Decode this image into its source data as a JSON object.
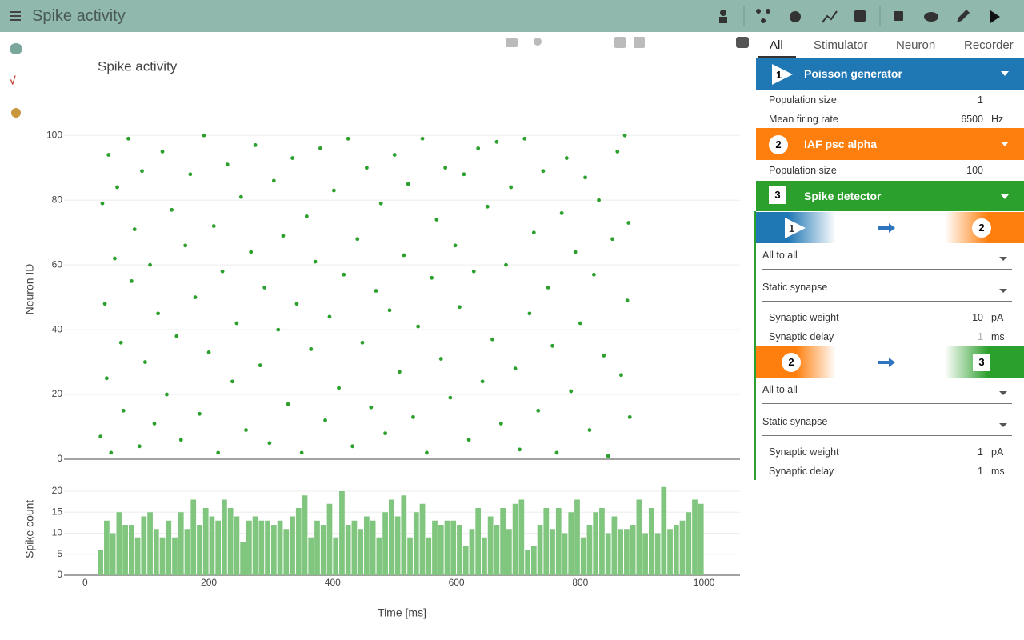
{
  "header": {
    "title": "Spike activity"
  },
  "tabs": [
    "All",
    "Stimulator",
    "Neuron",
    "Recorder"
  ],
  "nodes": [
    {
      "id": 1,
      "label": "Poisson generator",
      "params": [
        {
          "label": "Population size",
          "value": 1
        },
        {
          "label": "Mean firing rate",
          "value": 6500,
          "unit": "Hz"
        }
      ]
    },
    {
      "id": 2,
      "label": "IAF psc alpha",
      "params": [
        {
          "label": "Population size",
          "value": 100
        }
      ]
    },
    {
      "id": 3,
      "label": "Spike detector"
    }
  ],
  "connections": [
    {
      "source": 1,
      "target": 2,
      "rule": "All to all",
      "model": "Static synapse",
      "params": [
        {
          "label": "Synaptic weight",
          "value": 10,
          "unit": "pA"
        },
        {
          "label": "Synaptic delay",
          "value": 1,
          "unit": "ms"
        }
      ]
    },
    {
      "source": 2,
      "target": 3,
      "rule": "All to all",
      "model": "Static synapse",
      "params": [
        {
          "label": "Synaptic weight",
          "value": 1,
          "unit": "pA"
        },
        {
          "label": "Synaptic delay",
          "value": 1,
          "unit": "ms"
        }
      ]
    }
  ],
  "chart_data": [
    {
      "type": "scatter",
      "title": "Spike activity",
      "ylabel": "Neuron ID",
      "color": "#2ca02c",
      "xlim": [
        -34,
        1058
      ],
      "ylim": [
        0,
        105
      ],
      "yticks": [
        0,
        20,
        40,
        60,
        80,
        100
      ],
      "grid": true,
      "x": [
        25,
        28,
        32,
        35,
        38,
        42,
        48,
        52,
        58,
        62,
        70,
        75,
        80,
        88,
        92,
        97,
        105,
        112,
        118,
        125,
        132,
        140,
        148,
        155,
        162,
        170,
        178,
        185,
        192,
        200,
        208,
        215,
        222,
        230,
        238,
        245,
        252,
        260,
        268,
        275,
        283,
        290,
        298,
        305,
        312,
        320,
        328,
        335,
        342,
        350,
        358,
        365,
        372,
        380,
        388,
        395,
        402,
        410,
        418,
        425,
        432,
        440,
        448,
        455,
        462,
        470,
        478,
        485,
        492,
        500,
        508,
        515,
        522,
        530,
        538,
        545,
        552,
        560,
        568,
        575,
        582,
        590,
        598,
        605,
        612,
        620,
        628,
        635,
        642,
        650,
        658,
        665,
        672,
        680,
        688,
        695,
        702,
        710,
        718,
        725,
        732,
        740,
        748,
        755,
        762,
        770,
        778,
        785,
        792,
        800,
        808,
        815,
        822,
        830,
        838,
        845,
        852,
        860,
        866,
        872,
        876,
        880,
        878
      ],
      "values": [
        7,
        79,
        48,
        25,
        94,
        2,
        62,
        84,
        36,
        15,
        99,
        55,
        71,
        4,
        89,
        30,
        60,
        11,
        45,
        95,
        20,
        77,
        38,
        6,
        66,
        88,
        50,
        14,
        100,
        33,
        72,
        2,
        58,
        91,
        24,
        42,
        81,
        9,
        64,
        97,
        29,
        53,
        5,
        86,
        40,
        69,
        17,
        93,
        48,
        2,
        75,
        34,
        61,
        96,
        12,
        44,
        83,
        22,
        57,
        99,
        4,
        68,
        36,
        90,
        16,
        52,
        79,
        8,
        46,
        94,
        27,
        63,
        85,
        13,
        41,
        99,
        2,
        56,
        74,
        31,
        90,
        19,
        66,
        47,
        88,
        6,
        58,
        96,
        24,
        78,
        37,
        98,
        11,
        60,
        84,
        28,
        3,
        99,
        45,
        70,
        15,
        89,
        53,
        35,
        2,
        76,
        93,
        21,
        64,
        42,
        87,
        9,
        57,
        80,
        32,
        1,
        68,
        95,
        26,
        100,
        49,
        13,
        73
      ]
    },
    {
      "type": "histogram",
      "xlabel": "Time [ms]",
      "ylabel": "Spike count",
      "color": "#80c67f",
      "xlim": [
        -34,
        1058
      ],
      "ylim": [
        0,
        22
      ],
      "xticks": [
        0,
        200,
        400,
        600,
        800,
        1000
      ],
      "yticks": [
        0,
        5,
        10,
        15,
        20
      ],
      "grid": true,
      "bins": [
        20,
        30,
        40,
        50,
        60,
        70,
        80,
        90,
        100,
        110,
        120,
        130,
        140,
        150,
        160,
        170,
        180,
        190,
        200,
        210,
        220,
        230,
        240,
        250,
        260,
        270,
        280,
        290,
        300,
        310,
        320,
        330,
        340,
        350,
        360,
        370,
        380,
        390,
        400,
        410,
        420,
        430,
        440,
        450,
        460,
        470,
        480,
        490,
        500,
        510,
        520,
        530,
        540,
        550,
        560,
        570,
        580,
        590,
        600,
        610,
        620,
        630,
        640,
        650,
        660,
        670,
        680,
        690,
        700,
        710,
        720,
        730,
        740,
        750,
        760,
        770,
        780,
        790,
        800,
        810,
        820,
        830,
        840,
        850,
        860,
        870,
        880,
        890,
        900,
        910,
        920,
        930,
        940,
        950,
        960,
        970,
        980,
        990,
        1000
      ],
      "values": [
        6,
        13,
        10,
        15,
        12,
        12,
        9,
        14,
        15,
        11,
        9,
        13,
        9,
        15,
        11,
        18,
        12,
        16,
        14,
        13,
        18,
        16,
        14,
        8,
        13,
        14,
        13,
        13,
        12,
        13,
        11,
        14,
        16,
        19,
        9,
        13,
        12,
        17,
        9,
        20,
        12,
        13,
        11,
        14,
        13,
        9,
        15,
        18,
        14,
        19,
        9,
        15,
        17,
        9,
        13,
        12,
        13,
        13,
        12,
        7,
        11,
        16,
        9,
        14,
        12,
        16,
        11,
        17,
        18,
        6,
        7,
        12,
        16,
        11,
        16,
        10,
        15,
        18,
        9,
        12,
        15,
        16,
        10,
        14,
        11,
        11,
        12,
        18,
        10,
        16,
        10,
        21,
        11,
        12,
        13,
        15,
        18,
        17
      ]
    }
  ]
}
